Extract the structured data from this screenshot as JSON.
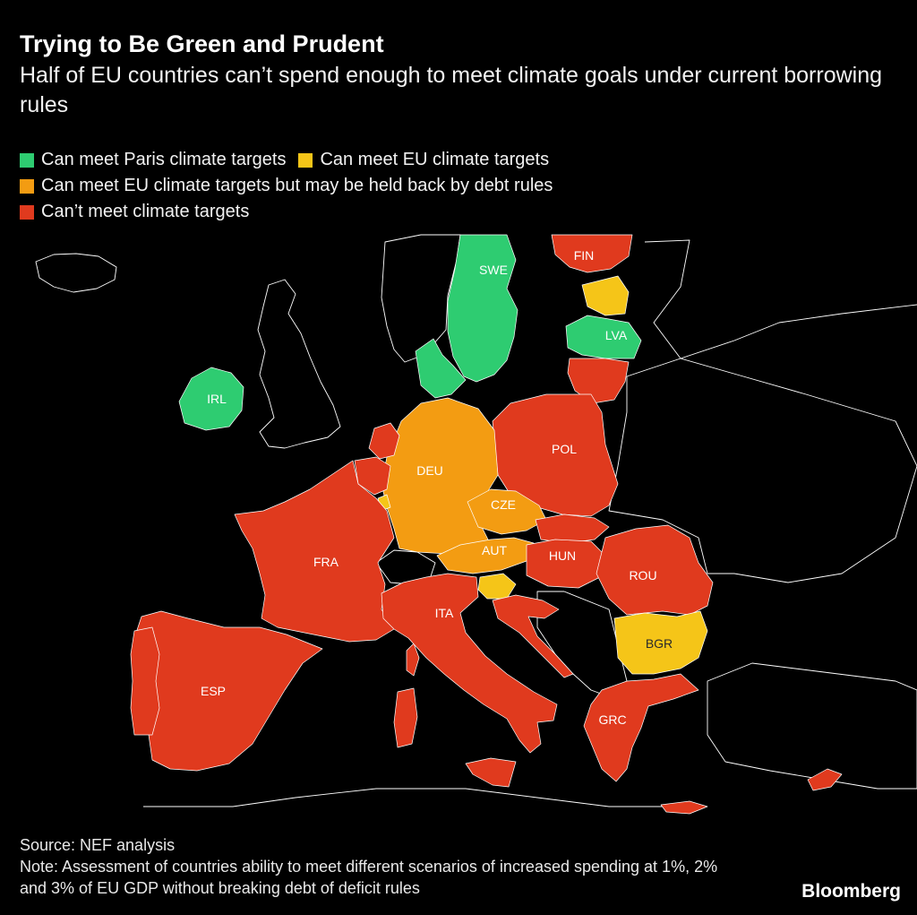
{
  "header": {
    "title": "Trying to Be Green and Prudent",
    "subtitle": "Half of EU countries can’t spend enough to meet climate goals under current borrowing rules"
  },
  "legend": [
    {
      "label": "Can meet Paris climate targets",
      "color": "#2ecc71"
    },
    {
      "label": "Can meet EU climate targets",
      "color": "#f5c518"
    },
    {
      "label": "Can meet EU climate targets but may be held back by debt rules",
      "color": "#f39c12"
    },
    {
      "label": "Can’t meet climate targets",
      "color": "#e03a1e"
    }
  ],
  "colors": {
    "paris": "#2ecc71",
    "eu": "#f5c518",
    "eu_debt": "#f39c12",
    "cant": "#e03a1e",
    "background": "#000000",
    "border": "#ffffff"
  },
  "countries": [
    {
      "code": "SWE",
      "category": "paris"
    },
    {
      "code": "FIN",
      "category": "cant"
    },
    {
      "code": "LVA",
      "category": "paris"
    },
    {
      "code": "IRL",
      "category": "paris"
    },
    {
      "code": "DEU",
      "category": "eu_debt"
    },
    {
      "code": "POL",
      "category": "cant"
    },
    {
      "code": "CZE",
      "category": "eu_debt"
    },
    {
      "code": "AUT",
      "category": "eu_debt"
    },
    {
      "code": "HUN",
      "category": "cant"
    },
    {
      "code": "FRA",
      "category": "cant"
    },
    {
      "code": "ROU",
      "category": "cant"
    },
    {
      "code": "ITA",
      "category": "cant"
    },
    {
      "code": "BGR",
      "category": "eu"
    },
    {
      "code": "ESP",
      "category": "cant"
    },
    {
      "code": "GRC",
      "category": "cant"
    }
  ],
  "footer": {
    "source": "Source: NEF analysis",
    "note": "Note: Assessment of countries ability to meet different scenarios of increased spending at 1%, 2% and 3% of EU GDP without breaking debt of deficit rules",
    "brand": "Bloomberg"
  }
}
